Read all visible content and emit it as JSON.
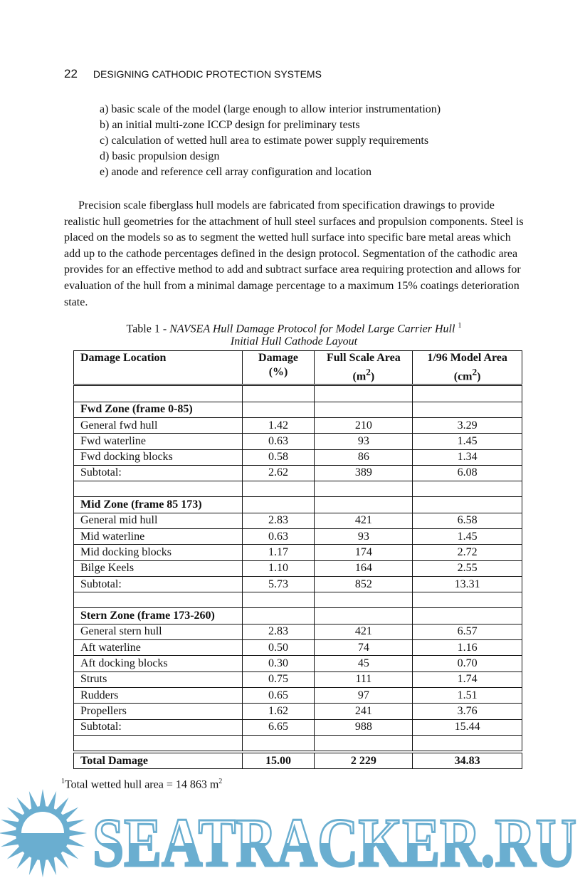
{
  "header": {
    "page_number": "22",
    "running_title": "DESIGNING CATHODIC PROTECTION SYSTEMS"
  },
  "list": [
    "a) basic scale of the model (large enough to allow interior instrumentation)",
    "b) an initial multi-zone ICCP design for preliminary tests",
    "c) calculation of wetted hull area to estimate power supply requirements",
    "d) basic propulsion design",
    "e) anode and reference cell array configuration and location"
  ],
  "paragraph": "Precision scale fiberglass hull models are fabricated from specification drawings to provide realistic hull geometries for the attachment of hull steel surfaces and propulsion components.  Steel is placed on the models so as to segment the wetted hull surface into specific bare metal areas which add up to the cathode percentages defined in the design protocol.  Segmentation of the cathodic area provides for an effective method to add and subtract surface area requiring protection and allows for evaluation of the hull from a minimal damage percentage to a maximum 15% coatings deterioration state.",
  "table": {
    "caption_prefix": "Table 1 - ",
    "caption_title": "NAVSEA Hull Damage Protocol for Model Large Carrier Hull",
    "caption_note_mark": "1",
    "caption_sub": "Initial Hull Cathode Layout",
    "columns": [
      {
        "line1": "Damage Location",
        "line2": ""
      },
      {
        "line1": "Damage",
        "line2": "(%)"
      },
      {
        "line1": "Full Scale Area",
        "line2": "(m",
        "sup": "2",
        "close": ")"
      },
      {
        "line1": "1/96 Model Area",
        "line2": "(cm",
        "sup": "2",
        "close": ")"
      }
    ],
    "rows": [
      {
        "type": "blank",
        "cells": [
          "",
          "",
          "",
          ""
        ]
      },
      {
        "type": "zone",
        "cells": [
          "Fwd Zone (frame 0-85)",
          "",
          "",
          ""
        ]
      },
      {
        "type": "data",
        "cells": [
          "General fwd hull",
          "1.42",
          "210",
          "3.29"
        ]
      },
      {
        "type": "data",
        "cells": [
          "Fwd waterline",
          "0.63",
          "93",
          "1.45"
        ]
      },
      {
        "type": "data",
        "cells": [
          "Fwd docking blocks",
          "0.58",
          "86",
          "1.34"
        ]
      },
      {
        "type": "data",
        "cells": [
          "Subtotal:",
          "2.62",
          "389",
          "6.08"
        ]
      },
      {
        "type": "blank",
        "cells": [
          "",
          "",
          "",
          ""
        ]
      },
      {
        "type": "zone",
        "cells": [
          "Mid Zone (frame 85 173)",
          "",
          "",
          ""
        ]
      },
      {
        "type": "data",
        "cells": [
          "General mid hull",
          "2.83",
          "421",
          "6.58"
        ]
      },
      {
        "type": "data",
        "cells": [
          "Mid waterline",
          "0.63",
          "93",
          "1.45"
        ]
      },
      {
        "type": "data",
        "cells": [
          "Mid docking blocks",
          "1.17",
          "174",
          "2.72"
        ]
      },
      {
        "type": "data",
        "cells": [
          "Bilge Keels",
          "1.10",
          "164",
          "2.55"
        ]
      },
      {
        "type": "data",
        "cells": [
          "Subtotal:",
          "5.73",
          "852",
          "13.31"
        ]
      },
      {
        "type": "blank",
        "cells": [
          "",
          "",
          "",
          ""
        ]
      },
      {
        "type": "zone",
        "cells": [
          "Stern Zone (frame 173-260)",
          "",
          "",
          ""
        ]
      },
      {
        "type": "data",
        "cells": [
          "General stern hull",
          "2.83",
          "421",
          "6.57"
        ]
      },
      {
        "type": "data",
        "cells": [
          "Aft waterline",
          "0.50",
          "74",
          "1.16"
        ]
      },
      {
        "type": "data",
        "cells": [
          "Aft docking blocks",
          "0.30",
          "45",
          "0.70"
        ]
      },
      {
        "type": "data",
        "cells": [
          "Struts",
          "0.75",
          "111",
          "1.74"
        ]
      },
      {
        "type": "data",
        "cells": [
          "Rudders",
          "0.65",
          "97",
          "1.51"
        ]
      },
      {
        "type": "data",
        "cells": [
          "Propellers",
          "1.62",
          "241",
          "3.76"
        ]
      },
      {
        "type": "data",
        "cells": [
          "Subtotal:",
          "6.65",
          "988",
          "15.44"
        ]
      },
      {
        "type": "blank",
        "cells": [
          "",
          "",
          "",
          ""
        ]
      }
    ],
    "total": [
      "Total Damage",
      "15.00",
      "2 229",
      "34.83"
    ]
  },
  "footnote": {
    "mark": "1",
    "text": "Total wetted hull area = 14 863 m",
    "sup": "2"
  },
  "watermark": {
    "text": "SEATRACKER.RU",
    "color": "#6aaed0",
    "icon": "sun-icon"
  }
}
